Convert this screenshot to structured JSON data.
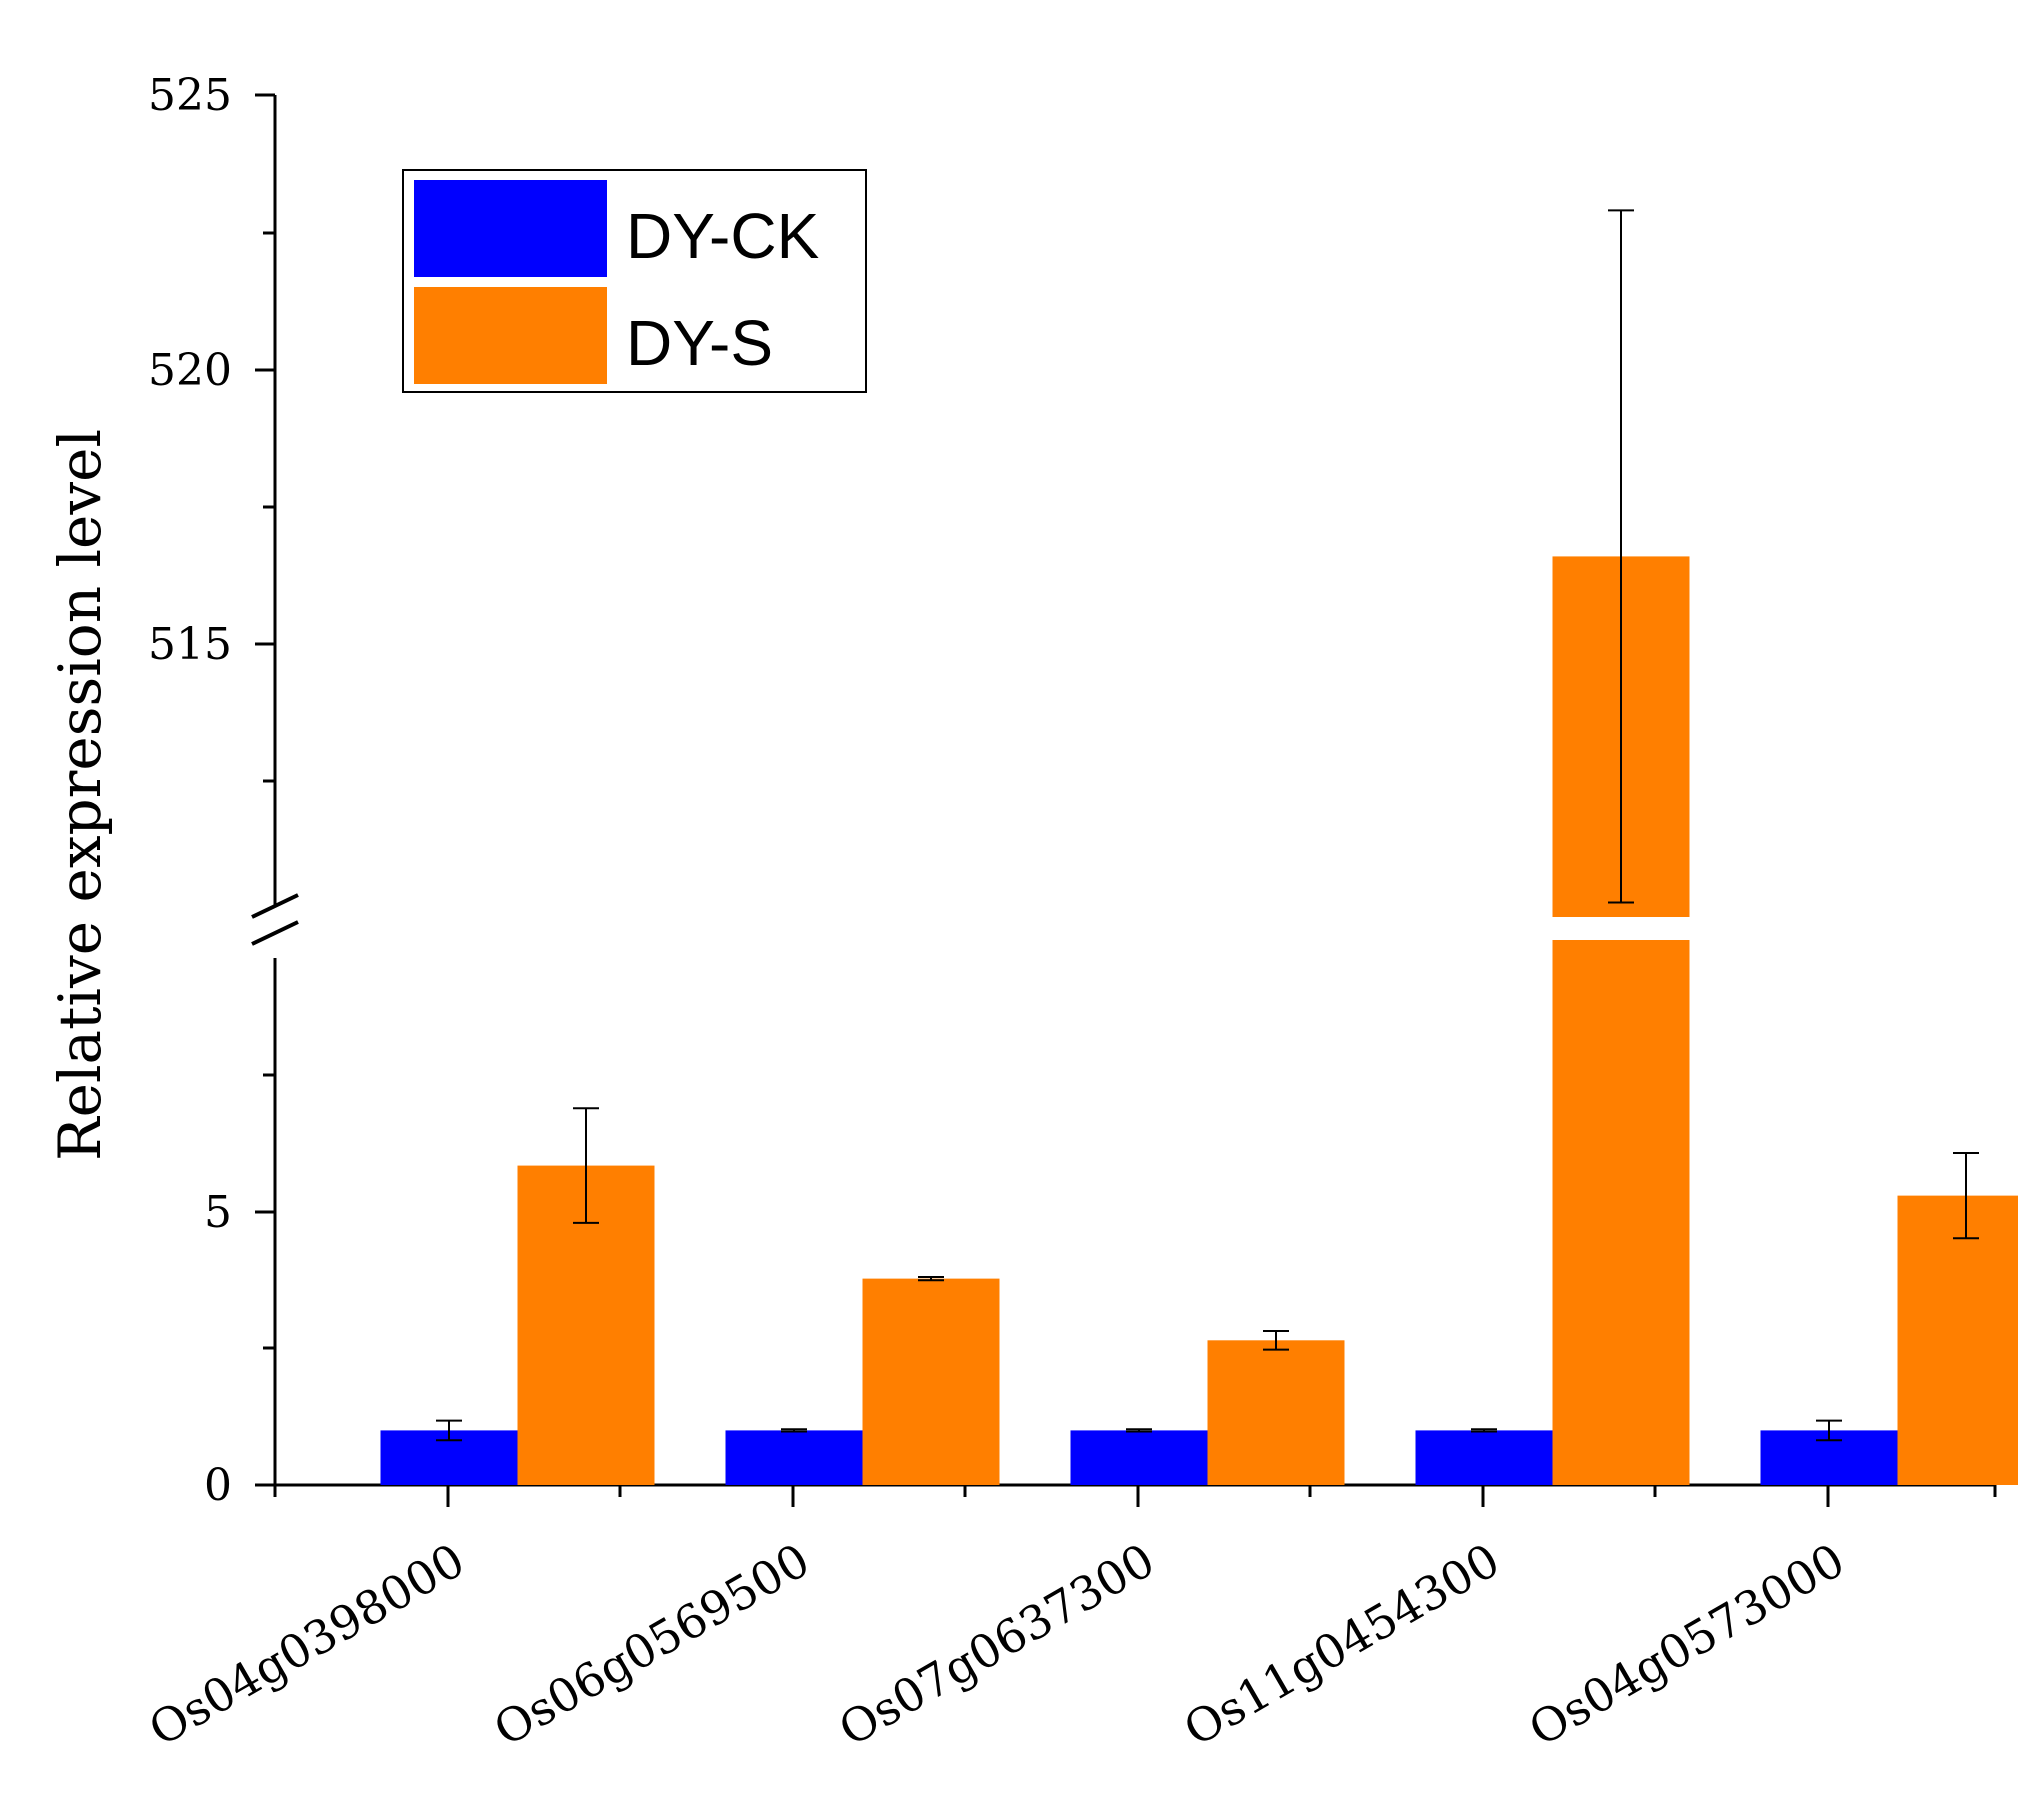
{
  "chart_data": {
    "type": "bar",
    "title": "",
    "xlabel": "",
    "ylabel": "Relative expression level",
    "categories": [
      "Os04g0398000",
      "Os06g0569500",
      "Os07g0637300",
      "Os11g0454300",
      "Os04g0573000"
    ],
    "series": [
      {
        "name": "DY-CK",
        "color": "#0000ff",
        "values": [
          1.0,
          1.0,
          1.0,
          1.0,
          1.0
        ],
        "errors": [
          0.18,
          0.02,
          0.02,
          0.02,
          0.18
        ]
      },
      {
        "name": "DY-S",
        "color": "#ff7f00",
        "values": [
          5.85,
          3.78,
          2.65,
          516.6,
          5.3
        ],
        "errors": [
          1.05,
          0.03,
          0.17,
          6.3,
          0.78
        ]
      }
    ],
    "axis_break": {
      "lower_range": [
        0,
        10
      ],
      "upper_range": [
        510,
        525
      ]
    },
    "yticks_lower": [
      "0",
      "5"
    ],
    "yticks_upper": [
      "515",
      "520",
      "525"
    ],
    "legend_position": "top-left",
    "grid": false
  }
}
